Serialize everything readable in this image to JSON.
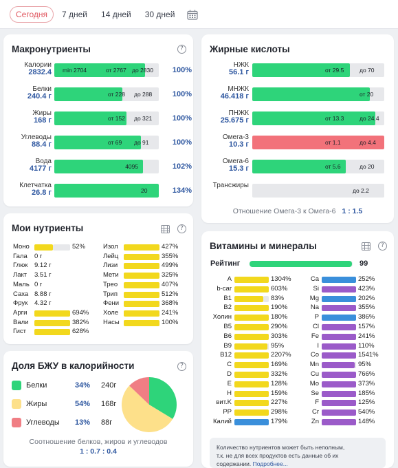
{
  "tabs": [
    {
      "label": "Сегодня"
    },
    {
      "label": "7 дней"
    },
    {
      "label": "14 дней"
    },
    {
      "label": "30 дней"
    }
  ],
  "colors": {
    "green": "#2ed47a",
    "red": "#f2727a",
    "yellow": "#f2d81d",
    "blue": "#3a8fdb",
    "purple": "#9b5bc9",
    "grey": "#e7e8eb",
    "pie_green": "#2ed47a",
    "pie_yellow": "#fde08a",
    "pie_red": "#f07e84"
  },
  "macros": {
    "title": "Макронутриенты",
    "rows": [
      {
        "name": "Калории",
        "value": "2832.4",
        "fill": 0.87,
        "color": "green",
        "texts": [
          "min 2704",
          "от 2767",
          "до 2830"
        ],
        "pct": "100%"
      },
      {
        "name": "Белки",
        "value": "240.4 г",
        "fill": 0.65,
        "color": "green",
        "texts": [
          "от 228",
          "до 288"
        ],
        "pct": "100%"
      },
      {
        "name": "Жиры",
        "value": "168 г",
        "fill": 0.69,
        "color": "green",
        "texts": [
          "от 152",
          "до 321"
        ],
        "pct": "100%"
      },
      {
        "name": "Углеводы",
        "value": "88.4 г",
        "fill": 0.83,
        "color": "green",
        "texts": [
          "от 69",
          "до 91"
        ],
        "pct": "100%"
      },
      {
        "name": "Вода",
        "value": "4177 г",
        "fill": 0.85,
        "color": "green",
        "texts": [
          "4095"
        ],
        "pct": "102%"
      },
      {
        "name": "Клетчатка",
        "value": "26.8 г",
        "fill": 1.0,
        "color": "green",
        "texts": [
          "20"
        ],
        "pct": "134%"
      }
    ]
  },
  "fats": {
    "title": "Жирные кислоты",
    "rows": [
      {
        "name": "НЖК",
        "value": "56.1 г",
        "fill": 0.74,
        "color": "green",
        "texts": [
          "от 29.5",
          "до 70"
        ]
      },
      {
        "name": "МНЖК",
        "value": "46.418 г",
        "fill": 0.89,
        "color": "green",
        "texts": [
          "от 20"
        ]
      },
      {
        "name": "ПНЖК",
        "value": "25.675 г",
        "fill": 0.93,
        "color": "green",
        "texts": [
          "от 13.3",
          "до 24.4"
        ]
      },
      {
        "name": "Омега-3",
        "value": "10.3 г",
        "fill": 1.0,
        "color": "red",
        "texts": [
          "от 1.1",
          "до 4.4"
        ]
      },
      {
        "name": "Омега-6",
        "value": "15.3 г",
        "fill": 0.71,
        "color": "green",
        "texts": [
          "от 5.6",
          "до 20"
        ]
      },
      {
        "name": "Трансжиры",
        "value": "",
        "fill": 0,
        "color": "green",
        "texts": [
          "до 2.2"
        ]
      }
    ],
    "ratio_label": "Отношение Омега-3 к Омега-6",
    "ratio_value": "1 : 1.5"
  },
  "my_nutrients": {
    "title": "Мои нутриенты",
    "left": [
      {
        "name": "Моно",
        "bar": 0.52,
        "color": "yellow",
        "value": "52%"
      },
      {
        "name": "Гала",
        "bar": 0,
        "color": "yellow",
        "value": "0 г"
      },
      {
        "name": "Глюк",
        "bar": 0,
        "color": "yellow",
        "value": "9.12 г"
      },
      {
        "name": "Лакт",
        "bar": 0,
        "color": "yellow",
        "value": "3.51 г"
      },
      {
        "name": "Маль",
        "bar": 0,
        "color": "yellow",
        "value": "0 г"
      },
      {
        "name": "Саха",
        "bar": 0,
        "color": "yellow",
        "value": "8.88 г"
      },
      {
        "name": "Фрук",
        "bar": 0,
        "color": "yellow",
        "value": "4.32 г"
      },
      {
        "name": "Арги",
        "bar": 1,
        "color": "yellow",
        "value": "694%"
      },
      {
        "name": "Вали",
        "bar": 1,
        "color": "yellow",
        "value": "382%"
      },
      {
        "name": "Гист",
        "bar": 1,
        "color": "yellow",
        "value": "628%"
      }
    ],
    "right": [
      {
        "name": "Изол",
        "bar": 1,
        "color": "yellow",
        "value": "427%"
      },
      {
        "name": "Лейц",
        "bar": 1,
        "color": "yellow",
        "value": "355%"
      },
      {
        "name": "Лизи",
        "bar": 1,
        "color": "yellow",
        "value": "499%"
      },
      {
        "name": "Мети",
        "bar": 1,
        "color": "yellow",
        "value": "325%"
      },
      {
        "name": "Трео",
        "bar": 1,
        "color": "yellow",
        "value": "407%"
      },
      {
        "name": "Трип",
        "bar": 1,
        "color": "yellow",
        "value": "512%"
      },
      {
        "name": "Фени",
        "bar": 1,
        "color": "yellow",
        "value": "368%"
      },
      {
        "name": "Холе",
        "bar": 1,
        "color": "yellow",
        "value": "241%"
      },
      {
        "name": "Насы",
        "bar": 1,
        "color": "yellow",
        "value": "100%"
      }
    ]
  },
  "bju": {
    "title": "Доля БЖУ в калорийности",
    "rows": [
      {
        "name": "Белки",
        "pct": "34%",
        "grams": "240г",
        "color": "pie_green",
        "share": 34
      },
      {
        "name": "Жиры",
        "pct": "54%",
        "grams": "168г",
        "color": "pie_yellow",
        "share": 54
      },
      {
        "name": "Углеводы",
        "pct": "13%",
        "grams": "88г",
        "color": "pie_red",
        "share": 13
      }
    ],
    "ratio_label": "Соотношение белков, жиров и углеводов",
    "ratio_value": "1 : 0.7 : 0.4"
  },
  "vitamins": {
    "title": "Витамины и минералы",
    "rating_label": "Рейтинг",
    "rating_value": "99",
    "rating_fill": 0.99,
    "left": [
      {
        "name": "A",
        "bar": 1,
        "color": "yellow",
        "value": "1304%"
      },
      {
        "name": "b-car",
        "bar": 1,
        "color": "yellow",
        "value": "603%"
      },
      {
        "name": "B1",
        "bar": 0.83,
        "color": "yellow",
        "value": "83%"
      },
      {
        "name": "B2",
        "bar": 1,
        "color": "yellow",
        "value": "190%"
      },
      {
        "name": "Холин",
        "bar": 1,
        "color": "yellow",
        "value": "180%"
      },
      {
        "name": "B5",
        "bar": 1,
        "color": "yellow",
        "value": "290%"
      },
      {
        "name": "B6",
        "bar": 1,
        "color": "yellow",
        "value": "303%"
      },
      {
        "name": "B9",
        "bar": 0.95,
        "color": "yellow",
        "value": "95%"
      },
      {
        "name": "B12",
        "bar": 1,
        "color": "yellow",
        "value": "2207%"
      },
      {
        "name": "C",
        "bar": 1,
        "color": "yellow",
        "value": "169%"
      },
      {
        "name": "D",
        "bar": 1,
        "color": "yellow",
        "value": "332%"
      },
      {
        "name": "E",
        "bar": 1,
        "color": "yellow",
        "value": "128%"
      },
      {
        "name": "H",
        "bar": 1,
        "color": "yellow",
        "value": "159%"
      },
      {
        "name": "вит.K",
        "bar": 1,
        "color": "yellow",
        "value": "227%"
      },
      {
        "name": "PP",
        "bar": 1,
        "color": "yellow",
        "value": "298%"
      },
      {
        "name": "Калий",
        "bar": 1,
        "color": "blue",
        "value": "179%"
      }
    ],
    "right": [
      {
        "name": "Ca",
        "bar": 1,
        "color": "blue",
        "value": "252%"
      },
      {
        "name": "Si",
        "bar": 1,
        "color": "purple",
        "value": "423%"
      },
      {
        "name": "Mg",
        "bar": 1,
        "color": "blue",
        "value": "202%"
      },
      {
        "name": "Na",
        "bar": 1,
        "color": "purple",
        "value": "355%"
      },
      {
        "name": "P",
        "bar": 1,
        "color": "blue",
        "value": "386%"
      },
      {
        "name": "Cl",
        "bar": 1,
        "color": "purple",
        "value": "157%"
      },
      {
        "name": "Fe",
        "bar": 1,
        "color": "purple",
        "value": "241%"
      },
      {
        "name": "I",
        "bar": 1,
        "color": "purple",
        "value": "110%"
      },
      {
        "name": "Co",
        "bar": 1,
        "color": "purple",
        "value": "1541%"
      },
      {
        "name": "Mn",
        "bar": 0.95,
        "color": "purple",
        "value": "95%"
      },
      {
        "name": "Cu",
        "bar": 1,
        "color": "purple",
        "value": "766%"
      },
      {
        "name": "Mo",
        "bar": 1,
        "color": "purple",
        "value": "373%"
      },
      {
        "name": "Se",
        "bar": 1,
        "color": "purple",
        "value": "185%"
      },
      {
        "name": "F",
        "bar": 1,
        "color": "purple",
        "value": "125%"
      },
      {
        "name": "Cr",
        "bar": 1,
        "color": "purple",
        "value": "540%"
      },
      {
        "name": "Zn",
        "bar": 1,
        "color": "purple",
        "value": "148%"
      }
    ],
    "note_line1": "Количество нутриентов может быть неполным,",
    "note_line2": "т.к. не для всех продуктов есть данные об их",
    "note_line3": "содержании.",
    "note_link": "Подробнее..."
  }
}
